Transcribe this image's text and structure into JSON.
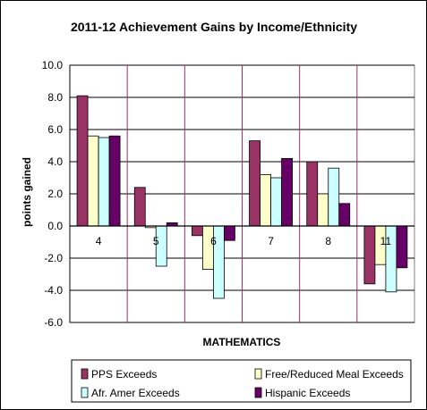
{
  "chart_data": {
    "type": "bar",
    "title": "2011-12 Achievement Gains by Income/Ethnicity",
    "xlabel": "MATHEMATICS",
    "ylabel": "points gained",
    "categories": [
      "4",
      "5",
      "6",
      "7",
      "8",
      "11"
    ],
    "ylim": [
      -6.0,
      10.0
    ],
    "yticks": [
      "10.0",
      "8.0",
      "6.0",
      "4.0",
      "2.0",
      "0.0",
      "-2.0",
      "-4.0",
      "-6.0"
    ],
    "grid": true,
    "legend_position": "bottom",
    "series": [
      {
        "name": "PPS Exceeds",
        "color": "#993366",
        "values": [
          8.1,
          2.4,
          -0.6,
          5.3,
          4.0,
          -3.6
        ]
      },
      {
        "name": "Free/Reduced Meal Exceeds",
        "color": "#FFFFCC",
        "values": [
          5.6,
          -0.1,
          -2.7,
          3.2,
          2.0,
          -2.4
        ]
      },
      {
        "name": "Afr. Amer Exceeds",
        "color": "#CCFFFF",
        "values": [
          5.5,
          -2.5,
          -4.5,
          3.0,
          3.6,
          -4.1
        ]
      },
      {
        "name": "Hispanic Exceeds",
        "color": "#660066",
        "values": [
          5.6,
          0.2,
          -0.9,
          4.2,
          1.4,
          -2.6
        ]
      }
    ]
  }
}
